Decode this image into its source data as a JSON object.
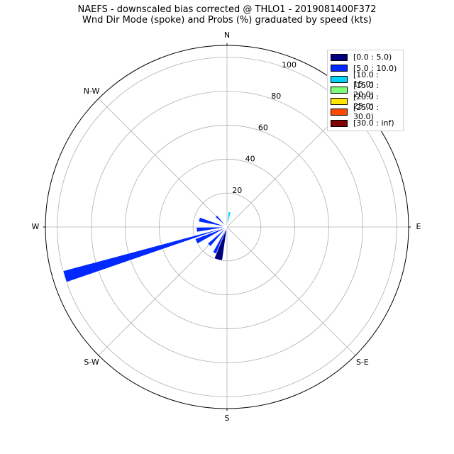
{
  "chart_data": {
    "type": "polar-bar (wind rose)",
    "title": "NAEFS - downscaled bias corrected @ THLO1 - 2019081400F372",
    "subtitle": "Wnd Dir Mode (spoke) and Probs (%) graduated by speed (kts)",
    "directions": [
      "N",
      "N-E",
      "E",
      "S-E",
      "S",
      "S-W",
      "W",
      "N-W"
    ],
    "radial_ticks": [
      "20",
      "40",
      "60",
      "80",
      "100"
    ],
    "rmax": 107,
    "legend": [
      {
        "label": "[0.0 : 5.0)",
        "color": "#00007f"
      },
      {
        "label": "[5.0 : 10.0)",
        "color": "#0028ff"
      },
      {
        "label": "[10.0 : 15.0)",
        "color": "#00d4ff"
      },
      {
        "label": "[15.0 : 20.0)",
        "color": "#7dff7a"
      },
      {
        "label": "[20.0 : 25.0)",
        "color": "#ffe500"
      },
      {
        "label": "[25.0 : 30.0)",
        "color": "#ff4a00"
      },
      {
        "label": "[30.0 : inf)",
        "color": "#7f0000"
      }
    ],
    "bars": [
      {
        "dir_deg": 10,
        "width_deg": 9,
        "bin": 2,
        "value": 9
      },
      {
        "dir_deg": 315,
        "width_deg": 9,
        "bin": 1,
        "value": 9
      },
      {
        "dir_deg": 285,
        "width_deg": 9,
        "bin": 1,
        "value": 17
      },
      {
        "dir_deg": 265,
        "width_deg": 9,
        "bin": 1,
        "value": 18
      },
      {
        "dir_deg": 253,
        "width_deg": 4,
        "bin": 1,
        "value": 100
      },
      {
        "dir_deg": 245,
        "width_deg": 9,
        "bin": 1,
        "value": 20
      },
      {
        "dir_deg": 225,
        "width_deg": 9,
        "bin": 1,
        "value": 15
      },
      {
        "dir_deg": 205,
        "width_deg": 9,
        "bin": 1,
        "value": 17
      },
      {
        "dir_deg": 195,
        "width_deg": 14,
        "bin": 0,
        "value": 20
      }
    ],
    "spoke_dir_deg": 315,
    "grid": true,
    "legend_position": "top-right"
  }
}
